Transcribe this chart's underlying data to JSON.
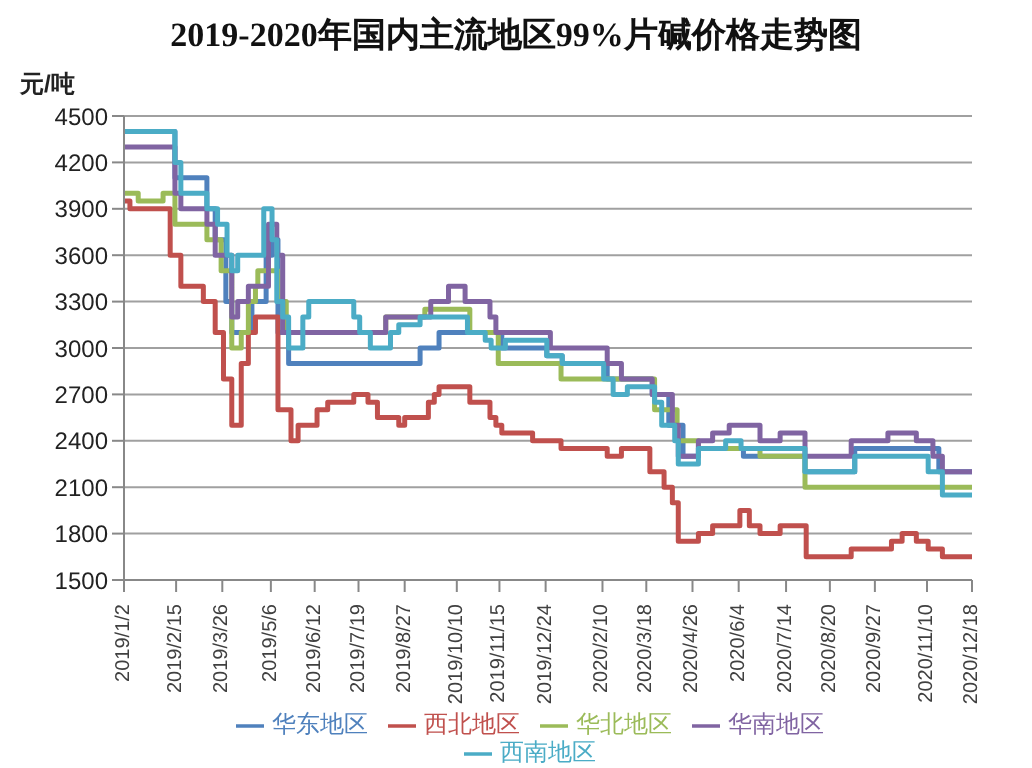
{
  "chart_data": {
    "type": "step",
    "title": "2019-2020年国内主流地区99%片碱价格走势图",
    "ylabel": "元/吨",
    "xlim": [
      "2019-01-02",
      "2020-12-18"
    ],
    "xticks": [
      {
        "value": "2019-01-02",
        "label": "2019/1/2"
      },
      {
        "value": "2019-02-15",
        "label": "2019/2/15"
      },
      {
        "value": "2019-03-26",
        "label": "2019/3/26"
      },
      {
        "value": "2019-05-06",
        "label": "2019/5/6"
      },
      {
        "value": "2019-06-12",
        "label": "2019/6/12"
      },
      {
        "value": "2019-07-19",
        "label": "2019/7/19"
      },
      {
        "value": "2019-08-27",
        "label": "2019/8/27"
      },
      {
        "value": "2019-10-10",
        "label": "2019/10/10"
      },
      {
        "value": "2019-11-15",
        "label": "2019/11/15"
      },
      {
        "value": "2019-12-24",
        "label": "2019/12/24"
      },
      {
        "value": "2020-02-10",
        "label": "2020/2/10"
      },
      {
        "value": "2020-03-18",
        "label": "2020/3/18"
      },
      {
        "value": "2020-04-26",
        "label": "2020/4/26"
      },
      {
        "value": "2020-06-04",
        "label": "2020/6/4"
      },
      {
        "value": "2020-07-14",
        "label": "2020/7/14"
      },
      {
        "value": "2020-08-20",
        "label": "2020/8/20"
      },
      {
        "value": "2020-09-27",
        "label": "2020/9/27"
      },
      {
        "value": "2020-11-10",
        "label": "2020/11/10"
      },
      {
        "value": "2020-12-18",
        "label": "2020/12/18"
      }
    ],
    "ylim": [
      1500,
      4500
    ],
    "yticks": [
      1500,
      1800,
      2100,
      2400,
      2700,
      3000,
      3300,
      3600,
      3900,
      4200,
      4500
    ],
    "grid": "y",
    "legend": "bottom",
    "marker": "none",
    "line_style": "solid",
    "series": [
      {
        "name": "华东地区",
        "color": "#4f81bd",
        "x": [
          "2019-01-02",
          "2019-02-14",
          "2019-03-13",
          "2019-03-20",
          "2019-03-29",
          "2019-04-03",
          "2019-04-20",
          "2019-05-02",
          "2019-05-07",
          "2019-05-12",
          "2019-05-21",
          "2019-09-09",
          "2019-09-25",
          "2019-11-17",
          "2019-12-25",
          "2020-01-07",
          "2020-02-14",
          "2020-03-23",
          "2020-04-06",
          "2020-04-18",
          "2020-05-01",
          "2020-06-08",
          "2020-07-30",
          "2020-09-10",
          "2020-11-20",
          "2020-12-18"
        ],
        "values": [
          4400,
          4100,
          3900,
          3700,
          3300,
          3100,
          3300,
          3600,
          3700,
          3100,
          2900,
          3000,
          3100,
          3000,
          2950,
          2900,
          2800,
          2700,
          2500,
          2300,
          2350,
          2300,
          2200,
          2350,
          2200,
          2200
        ]
      },
      {
        "name": "西北地区",
        "color": "#c0504d",
        "x": [
          "2019-01-02",
          "2019-01-07",
          "2019-02-10",
          "2019-02-19",
          "2019-03-10",
          "2019-03-20",
          "2019-03-27",
          "2019-04-03",
          "2019-04-11",
          "2019-04-17",
          "2019-04-23",
          "2019-05-12",
          "2019-05-23",
          "2019-05-29",
          "2019-06-14",
          "2019-06-23",
          "2019-07-15",
          "2019-07-27",
          "2019-08-04",
          "2019-08-22",
          "2019-08-27",
          "2019-09-16",
          "2019-09-21",
          "2019-09-25",
          "2019-10-21",
          "2019-11-07",
          "2019-11-12",
          "2019-11-17",
          "2019-12-13",
          "2020-01-06",
          "2020-02-14",
          "2020-02-26",
          "2020-03-21",
          "2020-04-02",
          "2020-04-09",
          "2020-04-14",
          "2020-05-01",
          "2020-05-13",
          "2020-06-05",
          "2020-06-13",
          "2020-06-22",
          "2020-07-09",
          "2020-07-31",
          "2020-09-07",
          "2020-10-11",
          "2020-10-20",
          "2020-11-01",
          "2020-11-11",
          "2020-11-23",
          "2020-12-18"
        ],
        "values": [
          3950,
          3900,
          3600,
          3400,
          3300,
          3100,
          2800,
          2500,
          2900,
          3100,
          3200,
          2600,
          2400,
          2500,
          2600,
          2650,
          2700,
          2650,
          2550,
          2500,
          2550,
          2650,
          2700,
          2750,
          2650,
          2550,
          2500,
          2450,
          2400,
          2350,
          2300,
          2350,
          2200,
          2100,
          2000,
          1750,
          1800,
          1850,
          1950,
          1850,
          1800,
          1850,
          1650,
          1700,
          1750,
          1800,
          1750,
          1700,
          1650,
          1650
        ]
      },
      {
        "name": "华北地区",
        "color": "#9bbb59",
        "x": [
          "2019-01-02",
          "2019-01-14",
          "2019-02-04",
          "2019-02-14",
          "2019-03-13",
          "2019-03-25",
          "2019-04-03",
          "2019-04-11",
          "2019-04-17",
          "2019-04-23",
          "2019-04-25",
          "2019-05-12",
          "2019-05-19",
          "2019-08-11",
          "2019-09-13",
          "2019-10-21",
          "2019-11-14",
          "2020-01-06",
          "2020-03-25",
          "2020-04-13",
          "2020-05-01",
          "2020-06-22",
          "2020-07-30",
          "2020-12-18"
        ],
        "values": [
          4000,
          3950,
          4000,
          3800,
          3700,
          3500,
          3000,
          3100,
          3300,
          3400,
          3500,
          3300,
          3100,
          3200,
          3250,
          3100,
          2900,
          2800,
          2600,
          2400,
          2350,
          2300,
          2100,
          2100
        ]
      },
      {
        "name": "华南地区",
        "color": "#8064a2",
        "x": [
          "2019-01-02",
          "2019-02-14",
          "2019-02-19",
          "2019-03-13",
          "2019-03-20",
          "2019-04-03",
          "2019-04-08",
          "2019-04-17",
          "2019-05-04",
          "2019-05-11",
          "2019-05-16",
          "2019-08-11",
          "2019-09-18",
          "2019-10-03",
          "2019-10-17",
          "2019-11-07",
          "2019-11-12",
          "2019-12-28",
          "2020-02-14",
          "2020-02-26",
          "2020-03-23",
          "2020-04-09",
          "2020-04-14",
          "2020-05-01",
          "2020-05-13",
          "2020-05-27",
          "2020-06-22",
          "2020-07-09",
          "2020-07-30",
          "2020-09-07",
          "2020-10-08",
          "2020-11-01",
          "2020-11-15",
          "2020-11-23",
          "2020-12-18"
        ],
        "values": [
          4300,
          4000,
          3900,
          3800,
          3600,
          3200,
          3300,
          3400,
          3800,
          3600,
          3100,
          3200,
          3300,
          3400,
          3300,
          3200,
          3100,
          3000,
          2900,
          2800,
          2700,
          2500,
          2300,
          2400,
          2450,
          2500,
          2400,
          2450,
          2300,
          2400,
          2450,
          2400,
          2300,
          2200,
          2200
        ]
      },
      {
        "name": "西南地区",
        "color": "#4bacc6",
        "x": [
          "2019-01-02",
          "2019-02-14",
          "2019-02-19",
          "2019-03-13",
          "2019-03-22",
          "2019-03-30",
          "2019-04-03",
          "2019-04-08",
          "2019-04-30",
          "2019-05-07",
          "2019-05-11",
          "2019-05-16",
          "2019-05-21",
          "2019-06-02",
          "2019-06-07",
          "2019-07-15",
          "2019-07-20",
          "2019-07-29",
          "2019-08-15",
          "2019-08-22",
          "2019-09-09",
          "2019-10-19",
          "2019-11-03",
          "2019-11-08",
          "2019-11-20",
          "2019-12-25",
          "2020-01-07",
          "2020-02-11",
          "2020-02-19",
          "2020-03-02",
          "2020-03-25",
          "2020-03-31",
          "2020-04-11",
          "2020-04-14",
          "2020-05-01",
          "2020-05-24",
          "2020-06-06",
          "2020-07-30",
          "2020-09-10",
          "2020-11-11",
          "2020-11-23",
          "2020-12-18"
        ],
        "values": [
          4400,
          4200,
          4000,
          3900,
          3800,
          3600,
          3500,
          3600,
          3900,
          3700,
          3300,
          3200,
          3000,
          3200,
          3300,
          3200,
          3100,
          3000,
          3100,
          3150,
          3200,
          3100,
          3050,
          3000,
          3050,
          2950,
          2900,
          2800,
          2700,
          2750,
          2650,
          2500,
          2400,
          2250,
          2350,
          2400,
          2350,
          2200,
          2300,
          2200,
          2050,
          2050
        ]
      }
    ]
  }
}
